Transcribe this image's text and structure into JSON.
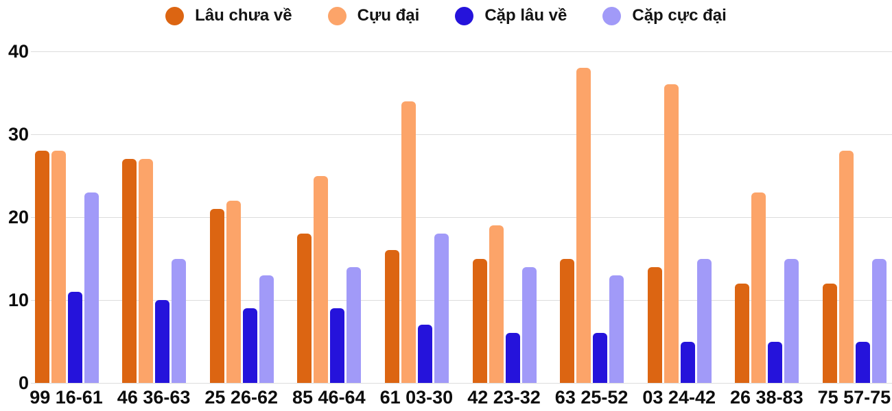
{
  "chart_data": {
    "type": "bar",
    "title": "",
    "xlabel": "",
    "ylabel": "",
    "categories": [
      "99 16-61",
      "46 36-63",
      "25 26-62",
      "85 46-64",
      "61 03-30",
      "42 23-32",
      "63 25-52",
      "03 24-42",
      "26 38-83",
      "75 57-75"
    ],
    "series": [
      {
        "name": "Lâu chưa về",
        "color": "#DC6512",
        "values": [
          28,
          27,
          21,
          18,
          16,
          15,
          15,
          14,
          12,
          12
        ]
      },
      {
        "name": "Cựu đại",
        "color": "#FCA469",
        "values": [
          28,
          27,
          22,
          25,
          34,
          19,
          38,
          36,
          23,
          28
        ]
      },
      {
        "name": "Cặp lâu về",
        "color": "#2513DB",
        "values": [
          11,
          10,
          9,
          9,
          7,
          6,
          6,
          5,
          5,
          5
        ]
      },
      {
        "name": "Cặp cực đại",
        "color": "#A19AF8",
        "values": [
          23,
          15,
          13,
          14,
          18,
          14,
          13,
          15,
          15,
          15
        ]
      }
    ],
    "ylim": [
      0,
      40
    ],
    "yticks": [
      0,
      10,
      20,
      30,
      40
    ],
    "grid": true,
    "legend_position": "top",
    "gridline_color": "#dcdcdc",
    "axis_text_color": "#0d0d0d",
    "background": "#ffffff"
  }
}
